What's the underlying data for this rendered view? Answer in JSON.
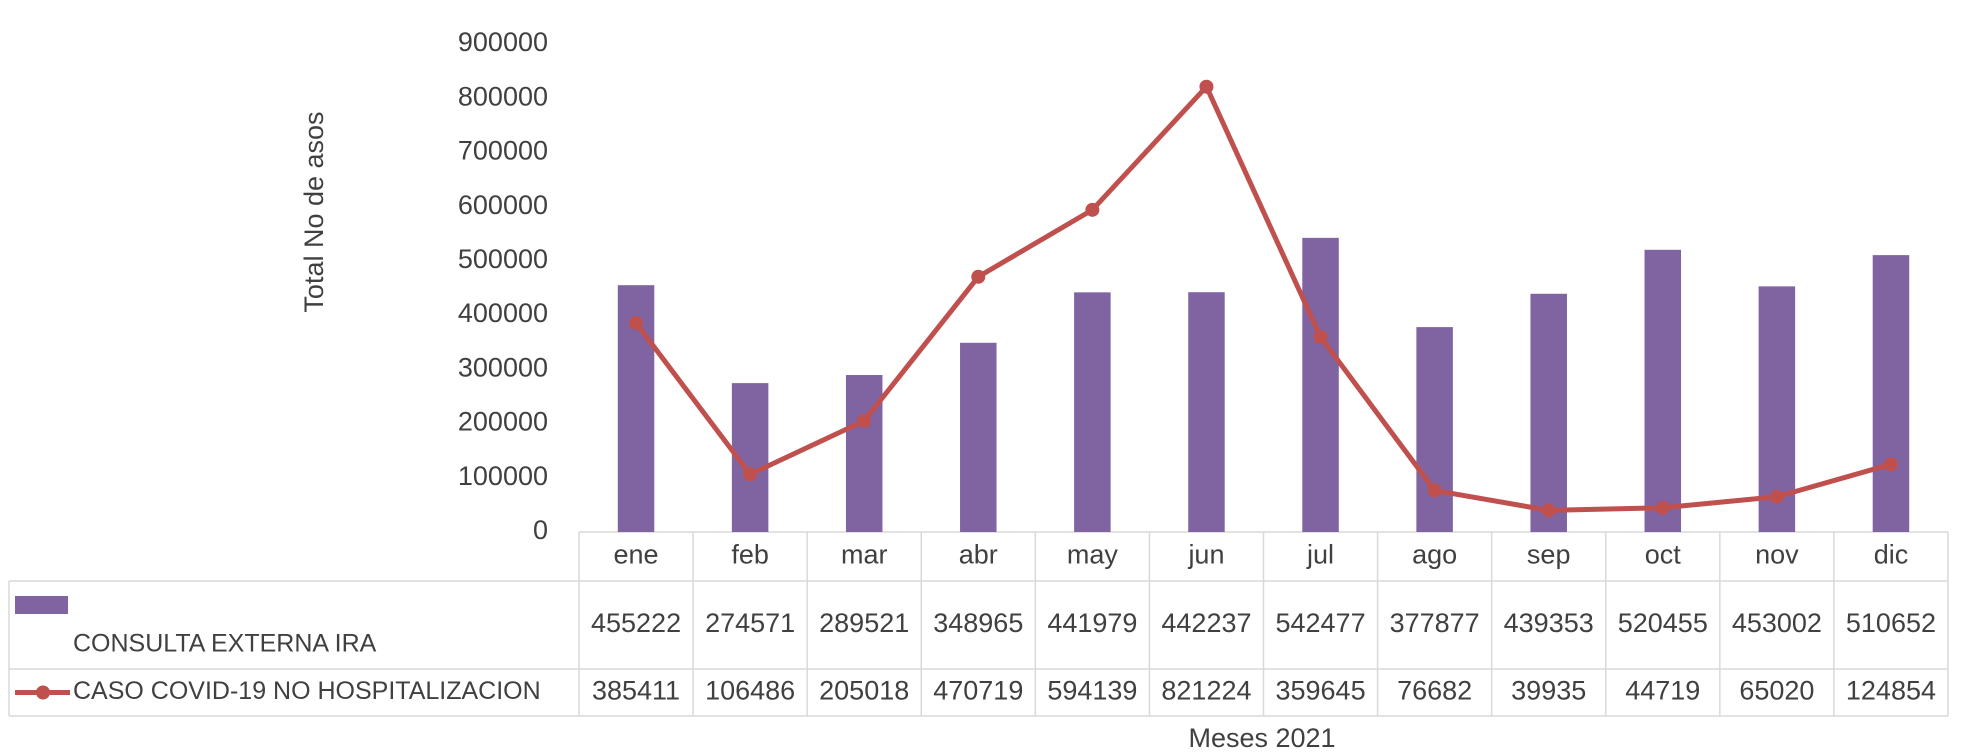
{
  "chart_data": {
    "type": "combo",
    "y_axis_title": "Total No de asos",
    "x_axis_title": "Meses 2021",
    "categories": [
      "ene",
      "feb",
      "mar",
      "abr",
      "may",
      "jun",
      "jul",
      "ago",
      "sep",
      "oct",
      "nov",
      "dic"
    ],
    "series": [
      {
        "name": "CONSULTA EXTERNA IRA",
        "type": "bar",
        "color": "#8064a2",
        "values": [
          455222,
          274571,
          289521,
          348965,
          441979,
          442237,
          542477,
          377877,
          439353,
          520455,
          453002,
          510652
        ]
      },
      {
        "name": "CASO COVID-19 NO HOSPITALIZACION",
        "type": "line",
        "color": "#c0504d",
        "values": [
          385411,
          106486,
          205018,
          470719,
          594139,
          821224,
          359645,
          76682,
          39935,
          44719,
          65020,
          124854
        ]
      }
    ],
    "ylim": [
      0,
      900000
    ],
    "yticks": [
      0,
      100000,
      200000,
      300000,
      400000,
      500000,
      600000,
      700000,
      800000,
      900000
    ],
    "grid": false,
    "data_table": true
  }
}
